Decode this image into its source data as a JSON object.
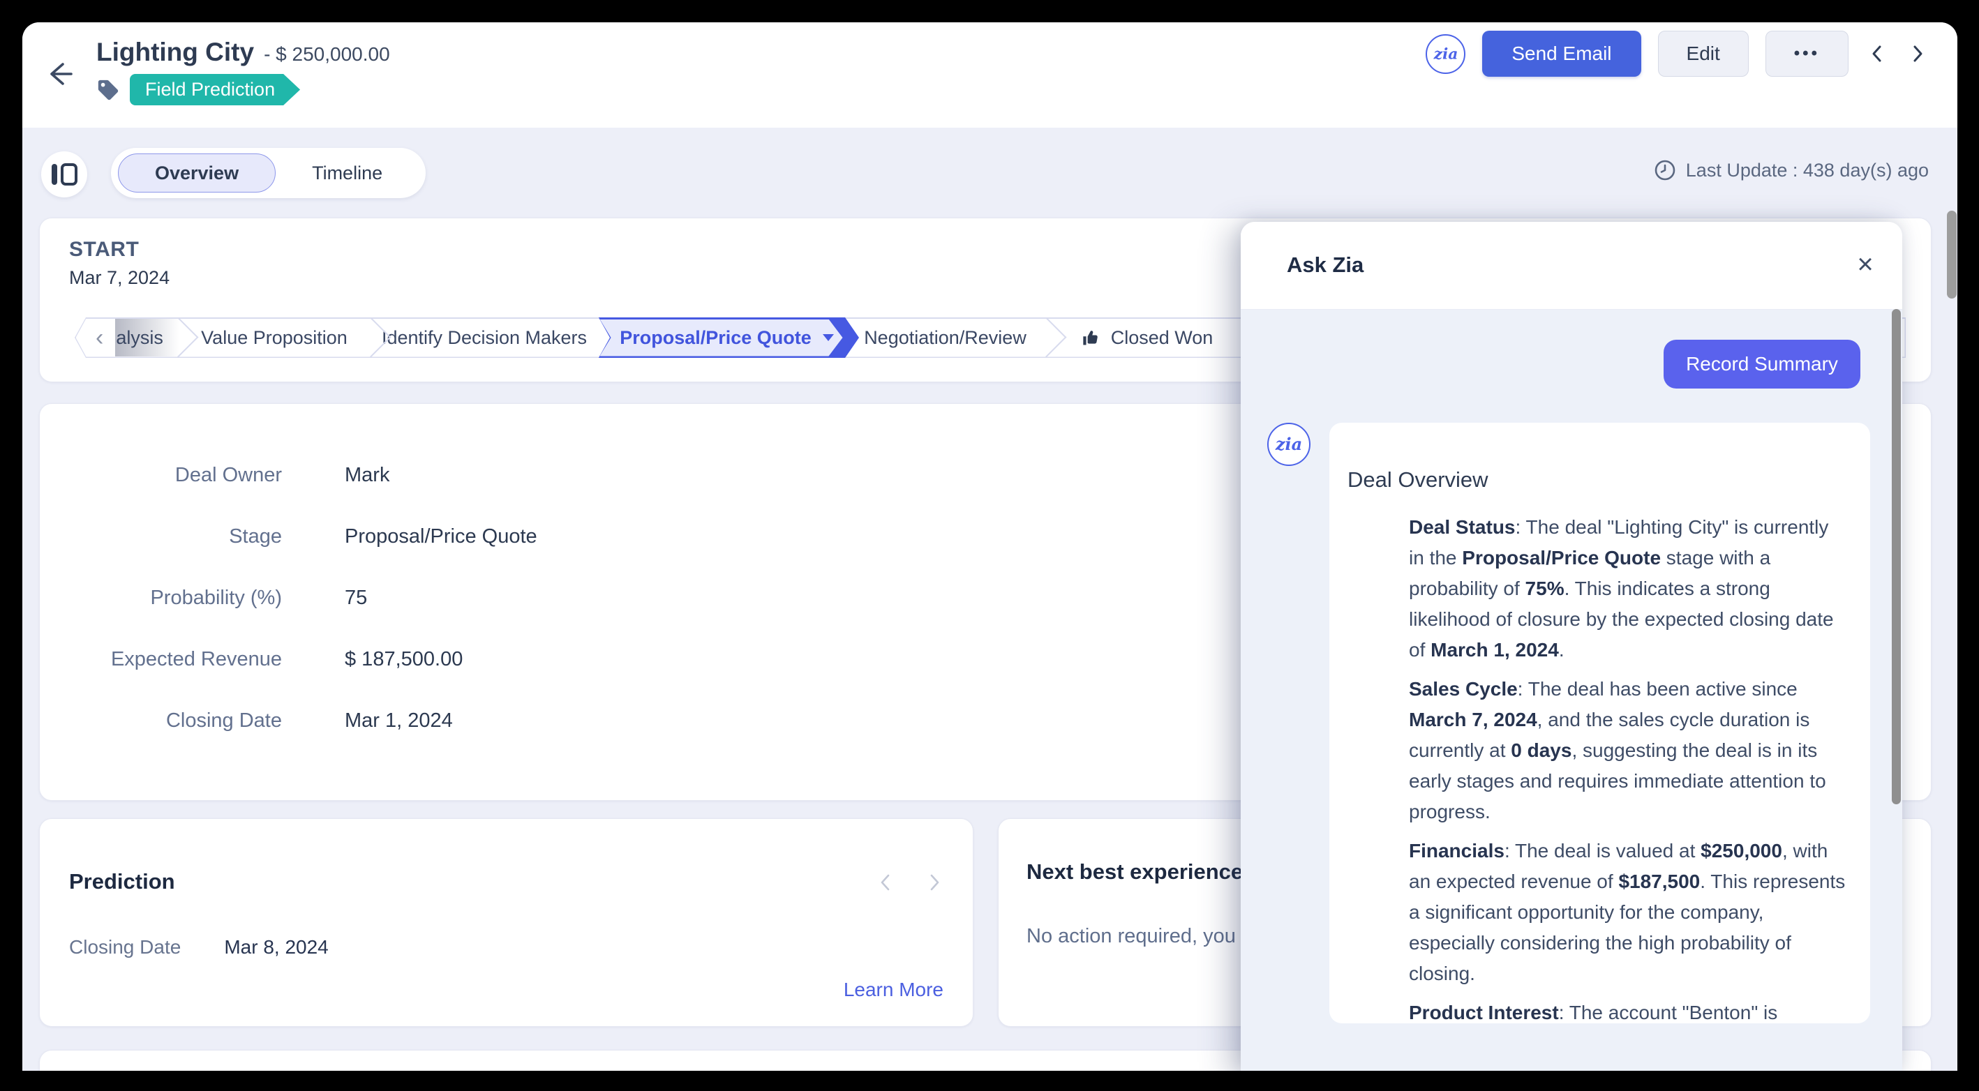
{
  "header": {
    "title": "Lighting City",
    "amount_suffix": "- $ 250,000.00",
    "tag_badge": "Field Prediction",
    "actions": {
      "send_email": "Send Email",
      "edit": "Edit",
      "more": "•••"
    }
  },
  "toolbar": {
    "tabs": [
      {
        "label": "Overview",
        "active": true
      },
      {
        "label": "Timeline",
        "active": false
      }
    ],
    "last_update": "Last Update : 438 day(s) ago"
  },
  "stage_path": {
    "start_label": "START",
    "start_date": "Mar 7, 2024",
    "stages": [
      {
        "label": "alysis",
        "partial": true
      },
      {
        "label": "Value Proposition"
      },
      {
        "label": "Identify Decision Makers"
      },
      {
        "label": "Proposal/Price Quote",
        "active": true,
        "has_caret": true
      },
      {
        "label": "Negotiation/Review"
      },
      {
        "label": "Closed Won",
        "icon": "thumbs-up-icon"
      }
    ]
  },
  "details": {
    "fields": [
      {
        "label": "Deal Owner",
        "value": "Mark"
      },
      {
        "label": "Stage",
        "value": "Proposal/Price Quote"
      },
      {
        "label": "Probability (%)",
        "value": "75"
      },
      {
        "label": "Expected Revenue",
        "value": "$ 187,500.00"
      },
      {
        "label": "Closing Date",
        "value": "Mar 1, 2024"
      }
    ]
  },
  "prediction": {
    "title": "Prediction",
    "field_label": "Closing Date",
    "field_value": "Mar 8, 2024",
    "link": "Learn More"
  },
  "next_best": {
    "title": "Next best experience",
    "text": "No action required, you"
  },
  "ask_zia": {
    "title": "Ask Zia",
    "record_summary_label": "Record Summary",
    "card_title": "Deal Overview",
    "paragraphs": [
      [
        {
          "t": "Deal Status",
          "b": true
        },
        {
          "t": ": The deal \"Lighting City\" is currently in the "
        },
        {
          "t": "Proposal/Price Quote",
          "b": true
        },
        {
          "t": " stage with a probability of "
        },
        {
          "t": "75%",
          "b": true
        },
        {
          "t": ". This indicates a strong likelihood of closure by the expected closing date of "
        },
        {
          "t": "March 1, 2024",
          "b": true
        },
        {
          "t": "."
        }
      ],
      [
        {
          "t": "Sales Cycle",
          "b": true
        },
        {
          "t": ": The deal has been active since "
        },
        {
          "t": "March 7, 2024",
          "b": true
        },
        {
          "t": ", and the sales cycle duration is currently at "
        },
        {
          "t": "0 days",
          "b": true
        },
        {
          "t": ", suggesting the deal is in its early stages and requires immediate attention to progress."
        }
      ],
      [
        {
          "t": "Financials",
          "b": true
        },
        {
          "t": ": The deal is valued at "
        },
        {
          "t": "$250,000",
          "b": true
        },
        {
          "t": ", with an expected revenue of "
        },
        {
          "t": "$187,500",
          "b": true
        },
        {
          "t": ". This represents a significant opportunity for the company, especially considering the high probability of closing."
        }
      ],
      [
        {
          "t": "Product Interest",
          "b": true
        },
        {
          "t": ": The account \"Benton\" is"
        }
      ]
    ]
  },
  "colors": {
    "primary_blue": "#4563dd",
    "zia_purple": "#5a62ed",
    "badge_teal": "#20b7aa",
    "active_stage": "#4659e2"
  }
}
